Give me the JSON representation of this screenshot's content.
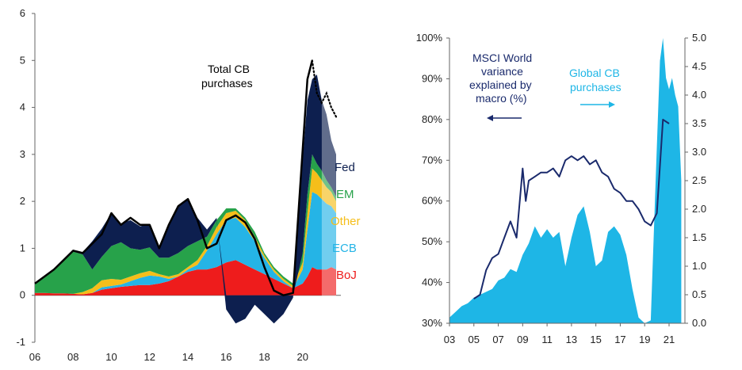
{
  "colors": {
    "fed": "#0d1f4f",
    "em": "#27a24a",
    "other": "#f5be1a",
    "ecb": "#25b4e6",
    "boj": "#ee1c1c",
    "total": "#000000",
    "msci": "#1a2a6c",
    "global_cb": "#1eb6e6",
    "right_note_cb": "#1eb6e6",
    "left_note_msci": "#1a2a6c"
  },
  "chart_data": [
    {
      "type": "area",
      "title": "",
      "annotation": "Total CB purchases",
      "x_ticks": [
        "06",
        "08",
        "10",
        "12",
        "14",
        "16",
        "18",
        "20"
      ],
      "xlim": [
        2006,
        2022
      ],
      "ylim": [
        -1,
        6
      ],
      "y_ticks": [
        "-1",
        "0",
        "1",
        "2",
        "3",
        "4",
        "5",
        "6"
      ],
      "legend": [
        "Fed",
        "EM",
        "Other",
        "ECB",
        "BoJ"
      ],
      "x": [
        2006.0,
        2006.5,
        2007.0,
        2007.5,
        2008.0,
        2008.5,
        2009.0,
        2009.5,
        2010.0,
        2010.5,
        2011.0,
        2011.5,
        2012.0,
        2012.5,
        2013.0,
        2013.5,
        2014.0,
        2014.5,
        2015.0,
        2015.5,
        2016.0,
        2016.5,
        2017.0,
        2017.5,
        2018.0,
        2018.5,
        2019.0,
        2019.5,
        2020.0,
        2020.25,
        2020.5,
        2020.75,
        2021.0,
        2021.25,
        2021.5,
        2021.75
      ],
      "series": [
        {
          "name": "BoJ",
          "values": [
            0.05,
            0.05,
            0.04,
            0.04,
            0.03,
            0.02,
            0.05,
            0.12,
            0.15,
            0.18,
            0.2,
            0.22,
            0.22,
            0.25,
            0.3,
            0.4,
            0.5,
            0.55,
            0.55,
            0.6,
            0.7,
            0.75,
            0.65,
            0.55,
            0.45,
            0.35,
            0.25,
            0.15,
            0.25,
            0.4,
            0.6,
            0.55,
            0.55,
            0.55,
            0.6,
            0.55
          ]
        },
        {
          "name": "ECB",
          "values": [
            0.0,
            0.0,
            0.0,
            0.0,
            0.0,
            0.0,
            0.0,
            0.05,
            0.05,
            0.05,
            0.1,
            0.15,
            0.2,
            0.15,
            0.05,
            0.0,
            0.05,
            0.1,
            0.4,
            0.7,
            0.9,
            0.9,
            0.8,
            0.6,
            0.35,
            0.15,
            0.05,
            0.0,
            0.3,
            1.0,
            1.6,
            1.6,
            1.5,
            1.4,
            1.3,
            1.2
          ]
        },
        {
          "name": "Other",
          "values": [
            0.0,
            0.0,
            0.0,
            0.0,
            0.0,
            0.05,
            0.1,
            0.15,
            0.15,
            0.1,
            0.1,
            0.1,
            0.1,
            0.05,
            0.05,
            0.05,
            0.05,
            0.1,
            0.1,
            0.15,
            0.15,
            0.15,
            0.15,
            0.1,
            0.05,
            0.05,
            0.05,
            0.05,
            0.15,
            0.35,
            0.5,
            0.45,
            0.4,
            0.35,
            0.3,
            0.25
          ]
        },
        {
          "name": "EM",
          "values": [
            0.2,
            0.35,
            0.5,
            0.7,
            0.9,
            0.8,
            0.4,
            0.5,
            0.7,
            0.8,
            0.6,
            0.5,
            0.5,
            0.35,
            0.4,
            0.45,
            0.45,
            0.4,
            0.2,
            0.15,
            0.1,
            0.05,
            0.05,
            0.1,
            0.05,
            0.05,
            0.05,
            0.05,
            0.2,
            0.4,
            0.3,
            0.2,
            0.2,
            0.15,
            0.1,
            0.1
          ]
        },
        {
          "name": "Fed",
          "values": [
            0.0,
            0.0,
            0.0,
            0.0,
            0.0,
            0.05,
            0.6,
            0.6,
            0.7,
            0.4,
            0.6,
            0.5,
            0.5,
            0.2,
            0.7,
            1.0,
            1.0,
            0.5,
            0.15,
            0.05,
            -0.3,
            -0.6,
            -0.5,
            -0.2,
            -0.4,
            -0.6,
            -0.4,
            -0.05,
            2.0,
            2.0,
            1.6,
            1.9,
            1.5,
            1.4,
            1.0,
            0.9
          ]
        }
      ],
      "total": [
        0.25,
        0.4,
        0.55,
        0.75,
        0.95,
        0.9,
        1.1,
        1.3,
        1.75,
        1.5,
        1.65,
        1.5,
        1.5,
        1.0,
        1.5,
        1.9,
        2.05,
        1.6,
        1.0,
        1.1,
        1.6,
        1.7,
        1.55,
        1.2,
        0.6,
        0.1,
        0.0,
        0.05,
        3.1,
        4.6,
        5.0,
        4.3,
        4.1,
        4.3,
        4.0,
        3.8
      ]
    },
    {
      "type": "line",
      "title": "",
      "x_ticks": [
        "03",
        "05",
        "07",
        "09",
        "11",
        "13",
        "15",
        "17",
        "19",
        "21"
      ],
      "xlim": [
        2003,
        2022.3
      ],
      "y_left_ticks": [
        "30%",
        "40%",
        "50%",
        "60%",
        "70%",
        "80%",
        "90%",
        "100%"
      ],
      "y_left_lim": [
        30,
        100
      ],
      "y_right_ticks": [
        "0.0",
        "0.5",
        "1.0",
        "1.5",
        "2.0",
        "2.5",
        "3.0",
        "3.5",
        "4.0",
        "4.5",
        "5.0"
      ],
      "y_right_lim": [
        0,
        5
      ],
      "annotations": {
        "msci": [
          "MSCI World",
          "variance",
          "explained by",
          "macro (%)"
        ],
        "cb": [
          "Global CB",
          "purchases"
        ]
      },
      "series": [
        {
          "name": "MSCI World variance explained by macro (%)",
          "axis": "left",
          "x": [
            2005.0,
            2005.5,
            2006.0,
            2006.5,
            2007.0,
            2007.5,
            2008.0,
            2008.5,
            2009.0,
            2009.25,
            2009.5,
            2010.0,
            2010.5,
            2011.0,
            2011.5,
            2012.0,
            2012.5,
            2013.0,
            2013.5,
            2014.0,
            2014.5,
            2015.0,
            2015.5,
            2016.0,
            2016.5,
            2017.0,
            2017.5,
            2018.0,
            2018.5,
            2019.0,
            2019.5,
            2020.0,
            2020.5,
            2021.0
          ],
          "values": [
            36,
            37,
            43,
            46,
            47,
            51,
            55,
            51,
            68,
            60,
            65,
            66,
            67,
            67,
            68,
            66,
            70,
            71,
            70,
            71,
            69,
            70,
            67,
            66,
            63,
            62,
            60,
            60,
            58,
            55,
            54,
            57,
            80,
            79
          ]
        },
        {
          "name": "Global CB purchases",
          "axis": "right",
          "x": [
            2003.0,
            2003.5,
            2004.0,
            2004.5,
            2005.0,
            2005.5,
            2006.0,
            2006.5,
            2007.0,
            2007.5,
            2008.0,
            2008.5,
            2009.0,
            2009.5,
            2010.0,
            2010.5,
            2011.0,
            2011.5,
            2012.0,
            2012.5,
            2013.0,
            2013.5,
            2014.0,
            2014.5,
            2015.0,
            2015.5,
            2016.0,
            2016.5,
            2017.0,
            2017.5,
            2018.0,
            2018.5,
            2019.0,
            2019.5,
            2020.0,
            2020.25,
            2020.5,
            2020.75,
            2021.0,
            2021.25,
            2021.5,
            2021.75,
            2022.0
          ],
          "values": [
            0.1,
            0.2,
            0.3,
            0.35,
            0.45,
            0.5,
            0.55,
            0.6,
            0.75,
            0.8,
            0.95,
            0.9,
            1.2,
            1.4,
            1.7,
            1.5,
            1.65,
            1.5,
            1.6,
            1.0,
            1.5,
            1.9,
            2.05,
            1.6,
            1.0,
            1.1,
            1.6,
            1.7,
            1.55,
            1.2,
            0.6,
            0.1,
            0.0,
            0.05,
            3.1,
            4.6,
            5.0,
            4.3,
            4.1,
            4.3,
            4.0,
            3.8,
            2.5
          ]
        }
      ]
    }
  ]
}
